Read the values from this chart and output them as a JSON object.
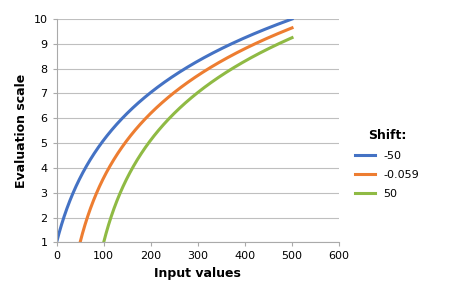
{
  "title": "",
  "xlabel": "Input values",
  "ylabel": "Evaluation scale",
  "xlim": [
    0,
    600
  ],
  "ylim": [
    1,
    10
  ],
  "yticks": [
    1,
    2,
    3,
    4,
    5,
    6,
    7,
    8,
    9,
    10
  ],
  "xticks": [
    0,
    100,
    200,
    300,
    400,
    500,
    600
  ],
  "legend_title": "Shift:",
  "series": [
    {
      "label": "-50",
      "shift": -50,
      "color": "#4472c4"
    },
    {
      "label": "-0.059",
      "shift": -0.059,
      "color": "#ed7d31"
    },
    {
      "label": "50",
      "shift": 50,
      "color": "#8fba44"
    }
  ],
  "background_color": "#ffffff",
  "grid_color": "#bfbfbf",
  "line_width": 2.2,
  "x_plot_max": 500,
  "ref_shift": -50,
  "ref_x_start": 0,
  "ref_y_start": 1,
  "ref_x_end": 500,
  "ref_y_end": 10
}
